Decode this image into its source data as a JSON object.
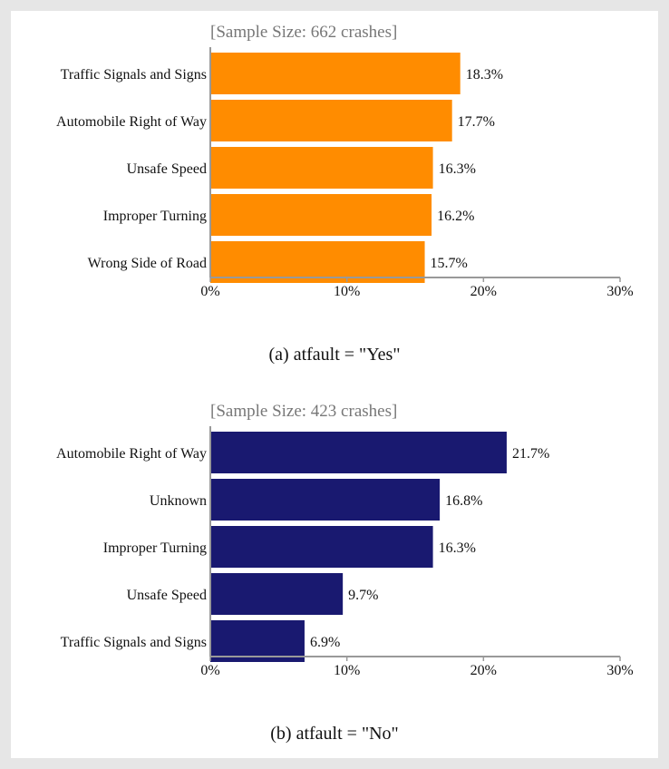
{
  "chart_data": [
    {
      "type": "bar",
      "orientation": "horizontal",
      "subtitle": "[Sample Size: 662 crashes]",
      "caption": "(a) atfault = \"Yes\"",
      "categories": [
        "Traffic Signals and Signs",
        "Automobile Right of Way",
        "Unsafe Speed",
        "Improper Turning",
        "Wrong Side of Road"
      ],
      "values": [
        18.3,
        17.7,
        16.3,
        16.2,
        15.7
      ],
      "value_labels": [
        "18.3%",
        "17.7%",
        "16.3%",
        "16.2%",
        "15.7%"
      ],
      "xlim": [
        0,
        30
      ],
      "xticks": [
        "0%",
        "10%",
        "20%",
        "30%"
      ],
      "bar_color": "#ff8c00",
      "grid": false
    },
    {
      "type": "bar",
      "orientation": "horizontal",
      "subtitle": "[Sample Size: 423 crashes]",
      "caption": "(b) atfault = \"No\"",
      "categories": [
        "Automobile Right of Way",
        "Unknown",
        "Improper Turning",
        "Unsafe Speed",
        "Traffic Signals and Signs"
      ],
      "values": [
        21.7,
        16.8,
        16.3,
        9.7,
        6.9
      ],
      "value_labels": [
        "21.7%",
        "16.8%",
        "16.3%",
        "9.7%",
        "6.9%"
      ],
      "xlim": [
        0,
        30
      ],
      "xticks": [
        "0%",
        "10%",
        "20%",
        "30%"
      ],
      "bar_color": "#191970",
      "grid": false
    }
  ]
}
